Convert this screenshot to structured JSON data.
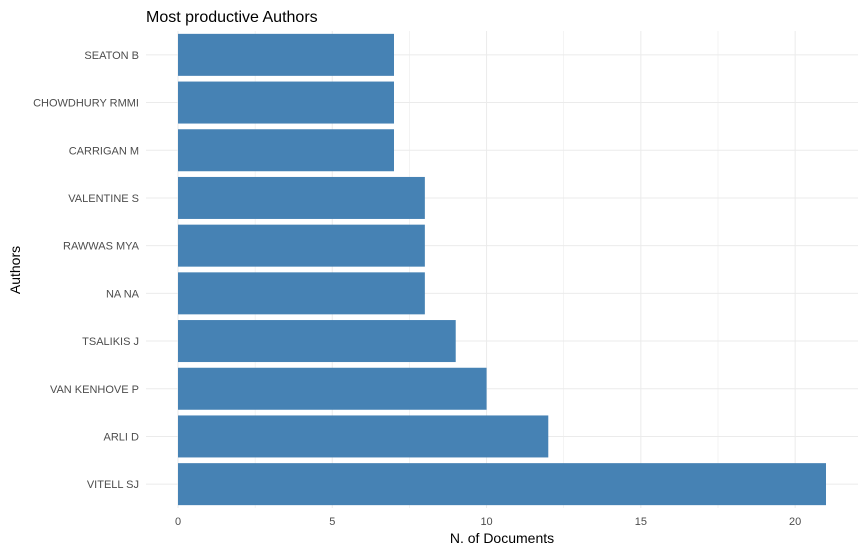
{
  "chart_data": {
    "type": "bar",
    "orientation": "horizontal",
    "title": "Most productive Authors",
    "xlabel": "N. of Documents",
    "ylabel": "Authors",
    "categories": [
      "SEATON B",
      "CHOWDHURY RMMI",
      "CARRIGAN M",
      "VALENTINE S",
      "RAWWAS MYA",
      "NA NA",
      "TSALIKIS J",
      "VAN KENHOVE P",
      "ARLI D",
      "VITELL SJ"
    ],
    "values": [
      7,
      7,
      7,
      8,
      8,
      8,
      9,
      10,
      12,
      21
    ],
    "xlim": [
      0,
      22
    ],
    "xticks": [
      0,
      5,
      10,
      15,
      20
    ],
    "grid": true,
    "legend": "none",
    "bar_color": "#4682B4",
    "grid_color": "#ebebeb"
  }
}
